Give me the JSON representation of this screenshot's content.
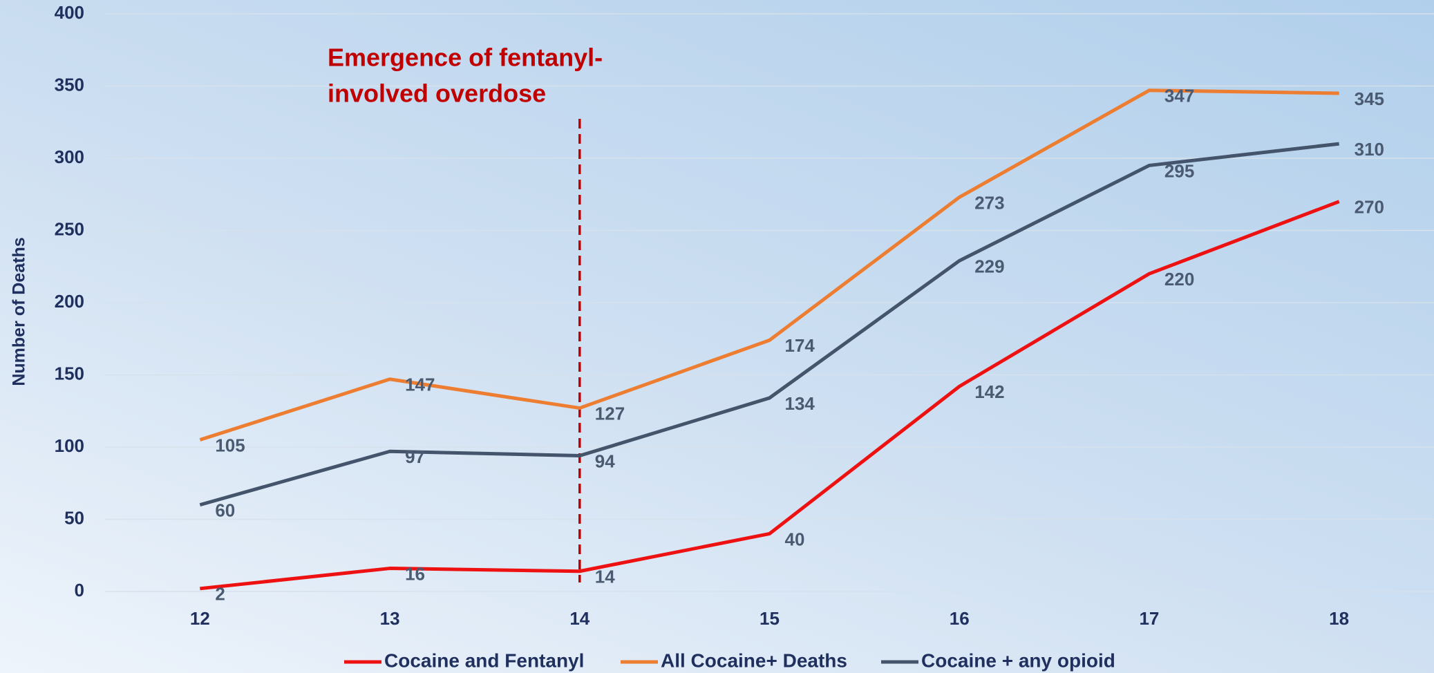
{
  "chart_data": {
    "type": "line",
    "y_label": "Number of Deaths",
    "annotation": {
      "lines": [
        "Emergence of fentanyl-",
        "involved overdose"
      ],
      "x": 14,
      "color": "#c00000"
    },
    "x": [
      12,
      13,
      14,
      15,
      16,
      17,
      18
    ],
    "xlim": [
      11.5,
      18.5
    ],
    "xticks": [
      12,
      13,
      14,
      15,
      16,
      17,
      18
    ],
    "ylim": [
      0,
      400
    ],
    "yticks": [
      0,
      50,
      100,
      150,
      200,
      250,
      300,
      350,
      400
    ],
    "grid": true,
    "legend": "bottom",
    "series": [
      {
        "name": "Cocaine and Fentanyl",
        "color": "#ee1111",
        "values": [
          2,
          16,
          14,
          40,
          142,
          220,
          270
        ]
      },
      {
        "name": "All Cocaine+ Deaths",
        "color": "#ed7d31",
        "values": [
          105,
          147,
          127,
          174,
          273,
          347,
          345
        ]
      },
      {
        "name": "Cocaine + any opioid",
        "color": "#44546a",
        "values": [
          60,
          97,
          94,
          134,
          229,
          295,
          310
        ]
      }
    ]
  }
}
